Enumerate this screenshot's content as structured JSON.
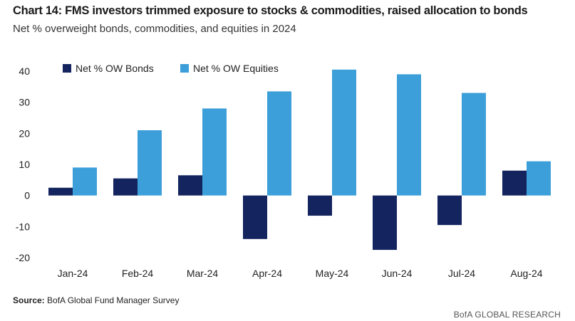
{
  "title": "Chart 14: FMS investors trimmed exposure to stocks & commodities, raised allocation to bonds",
  "subtitle": "Net % overweight bonds, commodities, and equities in 2024",
  "source_label": "Source:",
  "source_text": "BofA Global Fund Manager Survey",
  "brand": "BofA GLOBAL RESEARCH",
  "chart_data": {
    "type": "bar",
    "categories": [
      "Jan-24",
      "Feb-24",
      "Mar-24",
      "Apr-24",
      "May-24",
      "Jun-24",
      "Jul-24",
      "Aug-24"
    ],
    "series": [
      {
        "name": "Net % OW Bonds",
        "color": "#14245e",
        "values": [
          2.5,
          5.5,
          6.5,
          -14,
          -6.5,
          -17.5,
          -9.5,
          8
        ]
      },
      {
        "name": "Net % OW Equities",
        "color": "#3d9fd9",
        "values": [
          9,
          21,
          28,
          33.5,
          40.5,
          39,
          33,
          11
        ]
      }
    ],
    "ylim": [
      -20,
      40
    ],
    "yticks": [
      40,
      30,
      20,
      10,
      0,
      -10,
      -20
    ],
    "xlabel": "",
    "ylabel": "",
    "legend": "top-left"
  }
}
